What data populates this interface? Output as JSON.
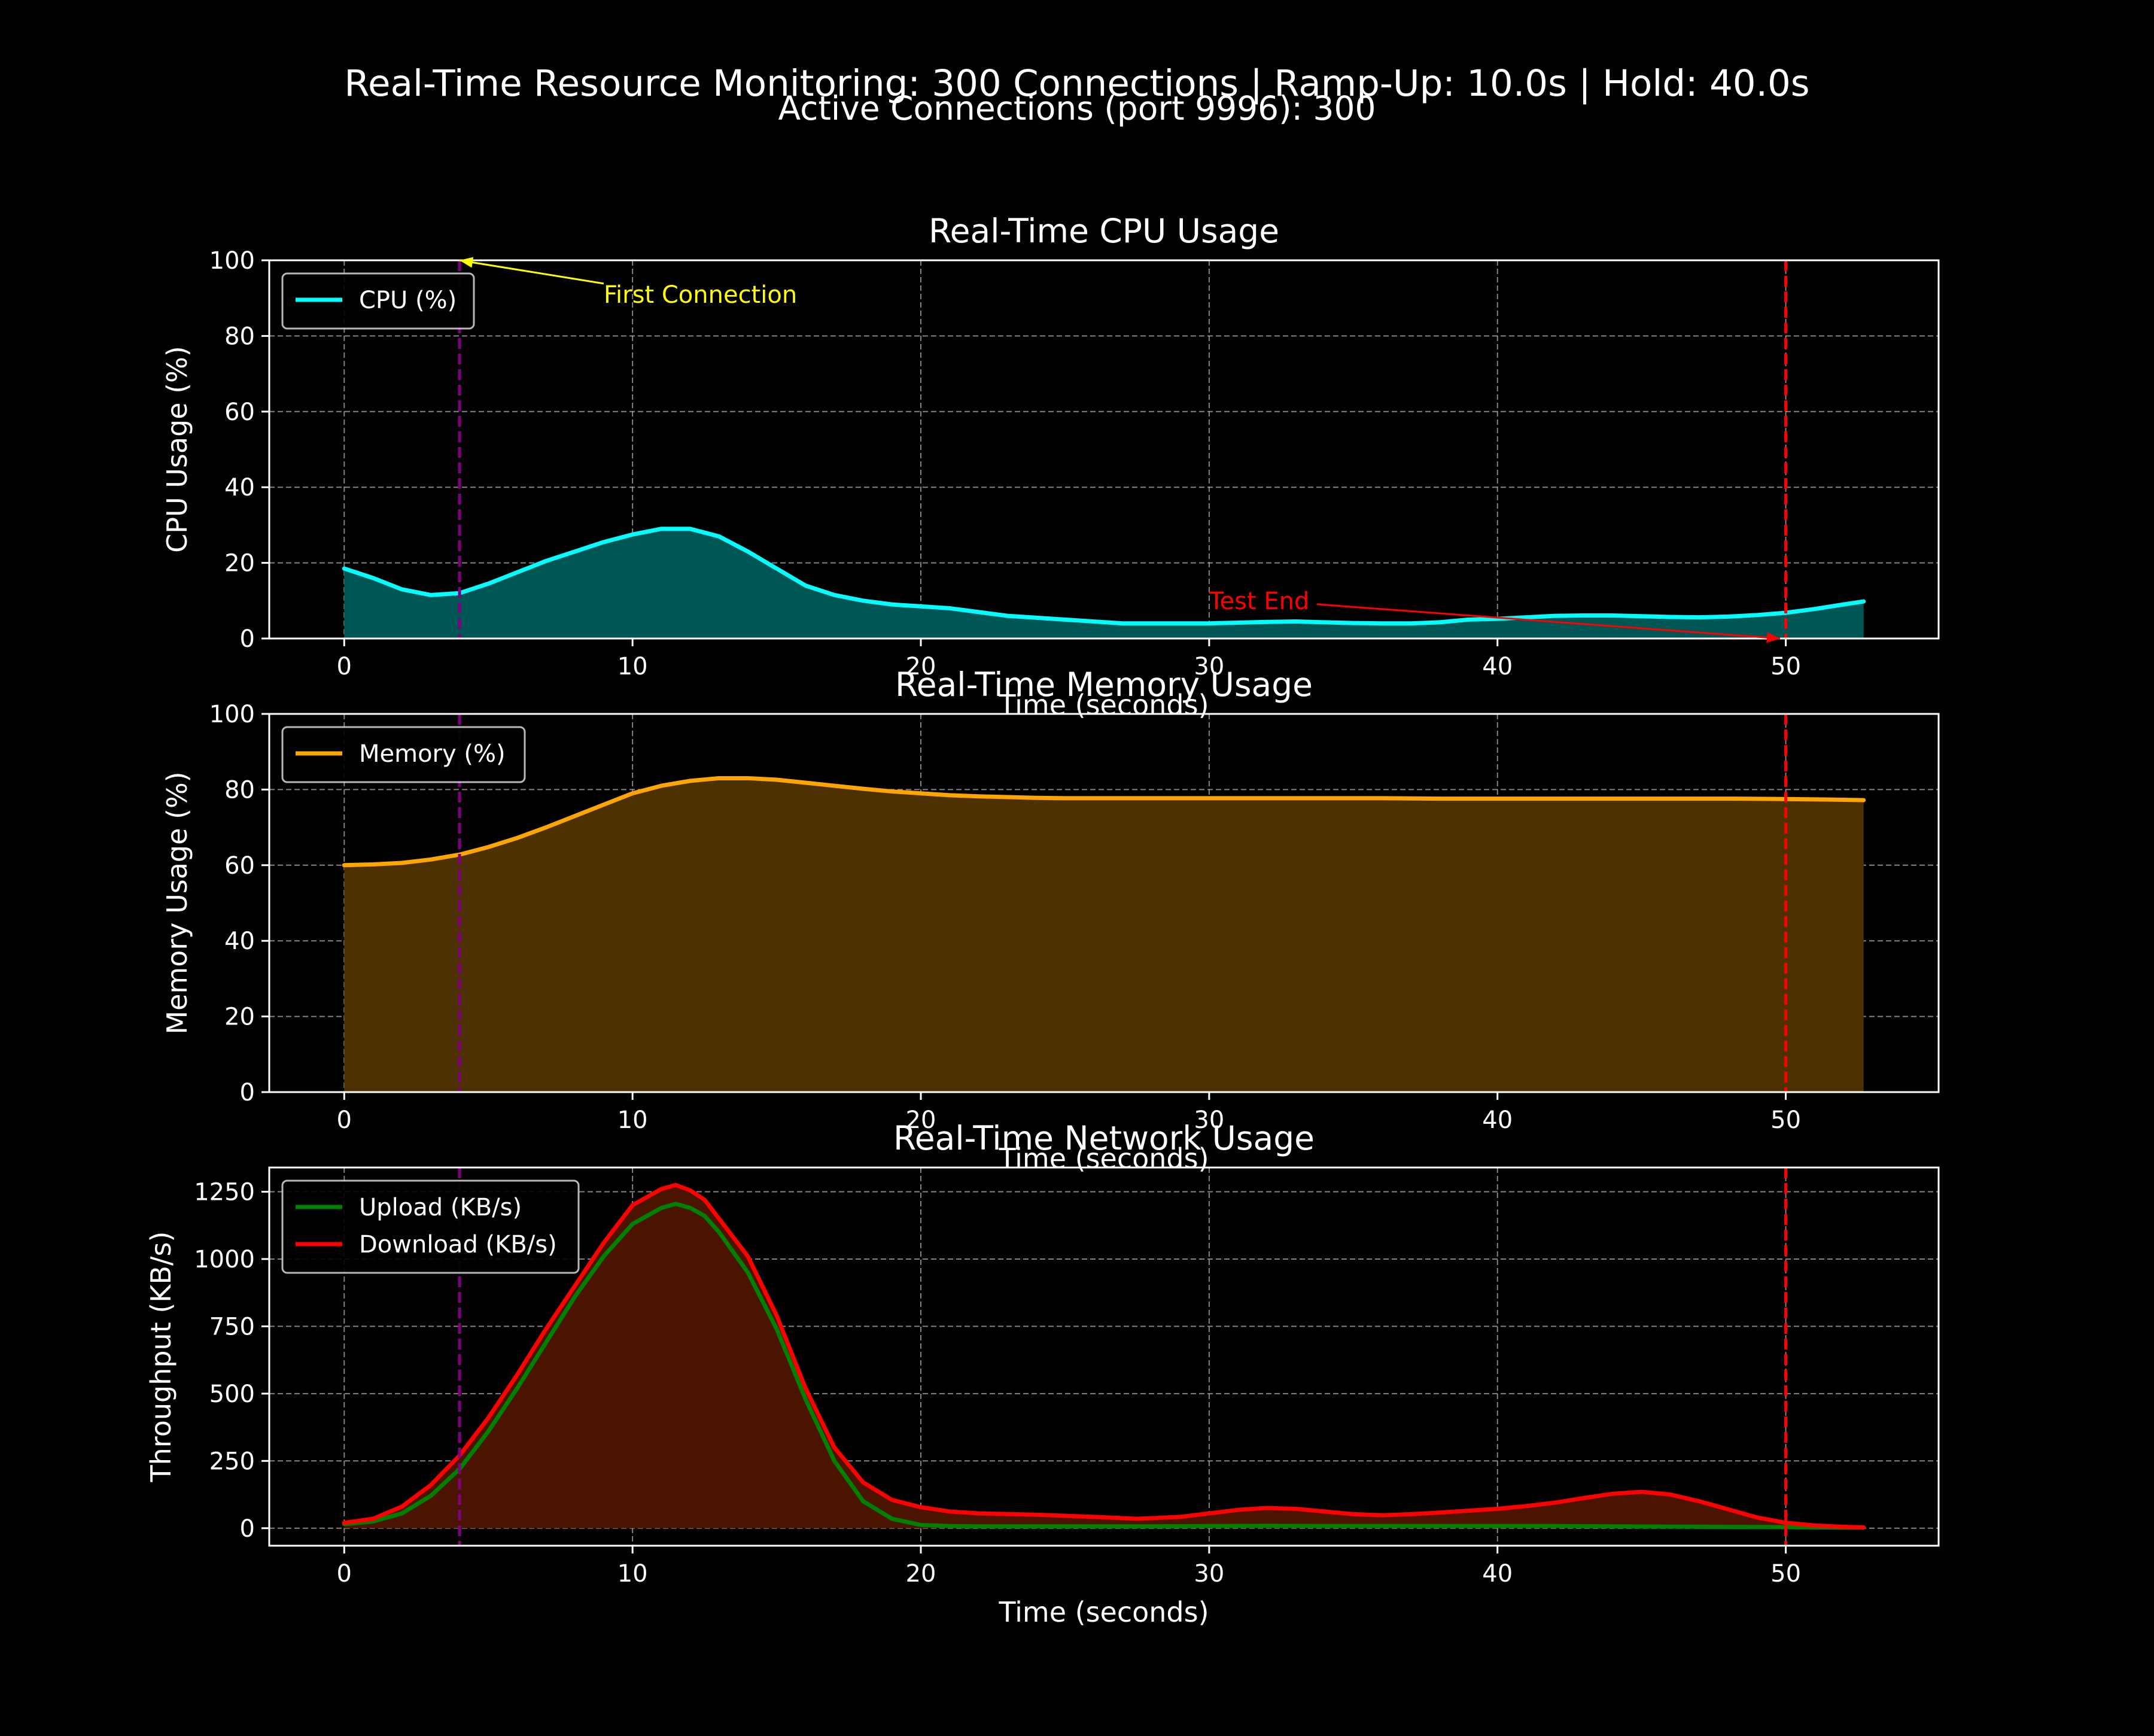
{
  "suptitle": "Real-Time Resource Monitoring: 300 Connections | Ramp-Up: 10.0s | Hold: 40.0s",
  "subtitle": "Active Connections (port 9996): 300",
  "colors": {
    "background": "#000000",
    "axes": "#ffffff",
    "grid": "#b0b0b0",
    "cpu": "#00ffff",
    "cpu_fill": "#005555",
    "memory": "#ffa500",
    "memory_fill": "#4d3100",
    "upload": "#008000",
    "download": "#ff0000",
    "network_fill": "#4a1400",
    "first_connection": "#800080",
    "test_end": "#ff0000",
    "first_connection_text": "#ffff00",
    "test_end_text": "#ff0000"
  },
  "chart_data": [
    {
      "type": "area",
      "title": "Real-Time CPU Usage",
      "xlabel": "Time (seconds)",
      "ylabel": "CPU Usage (%)",
      "xlim": [
        -2.6,
        55.3
      ],
      "ylim": [
        0,
        100
      ],
      "xticks": [
        0,
        10,
        20,
        30,
        40,
        50
      ],
      "yticks": [
        0,
        20,
        40,
        60,
        80,
        100
      ],
      "grid": true,
      "legend": "upper-left",
      "series": [
        {
          "name": "CPU (%)",
          "color": "cpu",
          "fill": "cpu_fill",
          "x": [
            0,
            1,
            2,
            3,
            4,
            5,
            6,
            7,
            8,
            9,
            10,
            11,
            12,
            13,
            14,
            15,
            16,
            17,
            18,
            19,
            20,
            21,
            22,
            23,
            24,
            25,
            26,
            27,
            28,
            29,
            30,
            31,
            32,
            33,
            34,
            35,
            36,
            37,
            38,
            39,
            40,
            41,
            42,
            43,
            44,
            45,
            46,
            47,
            48,
            49,
            50,
            51,
            52,
            52.7
          ],
          "y": [
            18.5,
            16,
            13,
            11.5,
            12,
            14.5,
            17.5,
            20.5,
            23,
            25.5,
            27.5,
            29,
            29,
            27,
            23,
            18.5,
            14,
            11.5,
            10,
            9,
            8.5,
            8,
            7,
            6,
            5.5,
            5,
            4.5,
            4,
            4,
            4,
            4,
            4.2,
            4.4,
            4.5,
            4.3,
            4.1,
            4,
            4,
            4.3,
            5,
            5.2,
            5.6,
            6,
            6.1,
            6.1,
            5.9,
            5.7,
            5.6,
            5.8,
            6.2,
            6.8,
            7.8,
            9,
            9.8
          ]
        }
      ],
      "markers": [
        {
          "x": 4,
          "color": "first_connection",
          "label": "First Connection",
          "label_color": "first_connection_text",
          "annotation": {
            "xy": [
              4,
              100
            ],
            "xytext": [
              9,
              91
            ]
          }
        },
        {
          "x": 50,
          "color": "test_end",
          "label": "Test End",
          "label_color": "test_end_text",
          "annotation": {
            "xy": [
              49.8,
              0
            ],
            "xytext": [
              30,
              10
            ]
          }
        }
      ]
    },
    {
      "type": "area",
      "title": "Real-Time Memory Usage",
      "xlabel": "Time (seconds)",
      "ylabel": "Memory Usage (%)",
      "xlim": [
        -2.6,
        55.3
      ],
      "ylim": [
        0,
        100
      ],
      "xticks": [
        0,
        10,
        20,
        30,
        40,
        50
      ],
      "yticks": [
        0,
        20,
        40,
        60,
        80,
        100
      ],
      "grid": true,
      "legend": "upper-left",
      "series": [
        {
          "name": "Memory (%)",
          "color": "memory",
          "fill": "memory_fill",
          "x": [
            0,
            1,
            2,
            3,
            4,
            5,
            6,
            7,
            8,
            9,
            10,
            11,
            12,
            13,
            14,
            15,
            16,
            17,
            18,
            19,
            20,
            21,
            22,
            23,
            24,
            25,
            26,
            27,
            28,
            29,
            30,
            32,
            34,
            36,
            38,
            40,
            42,
            44,
            46,
            48,
            50,
            52,
            52.7
          ],
          "y": [
            60,
            60.2,
            60.6,
            61.5,
            62.8,
            64.8,
            67.2,
            70,
            73,
            76,
            79,
            81,
            82.3,
            83,
            83,
            82.6,
            81.8,
            81,
            80.2,
            79.5,
            79,
            78.5,
            78.2,
            78,
            77.8,
            77.7,
            77.7,
            77.7,
            77.7,
            77.7,
            77.7,
            77.7,
            77.7,
            77.7,
            77.6,
            77.6,
            77.6,
            77.6,
            77.6,
            77.6,
            77.5,
            77.3,
            77.2
          ]
        }
      ],
      "markers": [
        {
          "x": 4,
          "color": "first_connection"
        },
        {
          "x": 50,
          "color": "test_end"
        }
      ]
    },
    {
      "type": "area",
      "title": "Real-Time Network Usage",
      "xlabel": "Time (seconds)",
      "ylabel": "Throughput (KB/s)",
      "xlim": [
        -2.6,
        55.3
      ],
      "ylim": [
        -65,
        1340
      ],
      "xticks": [
        0,
        10,
        20,
        30,
        40,
        50
      ],
      "yticks": [
        0,
        250,
        500,
        750,
        1000,
        1250
      ],
      "grid": true,
      "legend": "upper-left",
      "fill": "network_fill",
      "series": [
        {
          "name": "Upload (KB/s)",
          "color": "upload",
          "x": [
            0,
            1,
            2,
            3,
            4,
            5,
            6,
            7,
            8,
            9,
            10,
            11,
            11.5,
            12,
            12.5,
            13,
            14,
            15,
            16,
            17,
            18,
            19,
            20,
            21,
            22,
            24,
            26,
            28,
            30,
            32,
            34,
            36,
            38,
            40,
            42,
            44,
            46,
            48,
            50,
            51,
            52,
            52.7
          ],
          "y": [
            15,
            25,
            55,
            120,
            220,
            360,
            520,
            690,
            860,
            1010,
            1130,
            1190,
            1205,
            1190,
            1160,
            1100,
            950,
            740,
            480,
            250,
            100,
            35,
            12,
            8,
            7,
            7,
            7,
            7,
            8,
            9,
            8,
            8,
            8,
            8,
            8,
            7,
            6,
            5,
            4,
            3,
            2,
            2
          ]
        },
        {
          "name": "Download (KB/s)",
          "color": "download",
          "x": [
            0,
            1,
            2,
            3,
            4,
            5,
            6,
            7,
            8,
            9,
            10,
            11,
            11.5,
            12,
            12.5,
            13,
            14,
            15,
            16,
            17,
            18,
            19,
            20,
            21,
            22,
            24,
            26,
            27.5,
            29,
            30,
            31,
            32,
            33,
            34,
            35,
            36,
            37,
            38,
            39,
            40,
            41,
            42,
            43,
            44,
            45,
            46,
            47,
            48,
            49,
            50,
            51,
            52,
            52.7
          ],
          "y": [
            20,
            35,
            80,
            160,
            270,
            410,
            570,
            740,
            900,
            1060,
            1200,
            1260,
            1275,
            1255,
            1220,
            1150,
            1010,
            790,
            520,
            300,
            170,
            105,
            78,
            62,
            55,
            50,
            42,
            35,
            42,
            55,
            68,
            75,
            72,
            62,
            52,
            48,
            52,
            58,
            65,
            72,
            82,
            95,
            112,
            128,
            135,
            125,
            100,
            70,
            40,
            20,
            10,
            5,
            3
          ]
        }
      ],
      "markers": [
        {
          "x": 4,
          "color": "first_connection"
        },
        {
          "x": 50,
          "color": "test_end"
        }
      ]
    }
  ]
}
